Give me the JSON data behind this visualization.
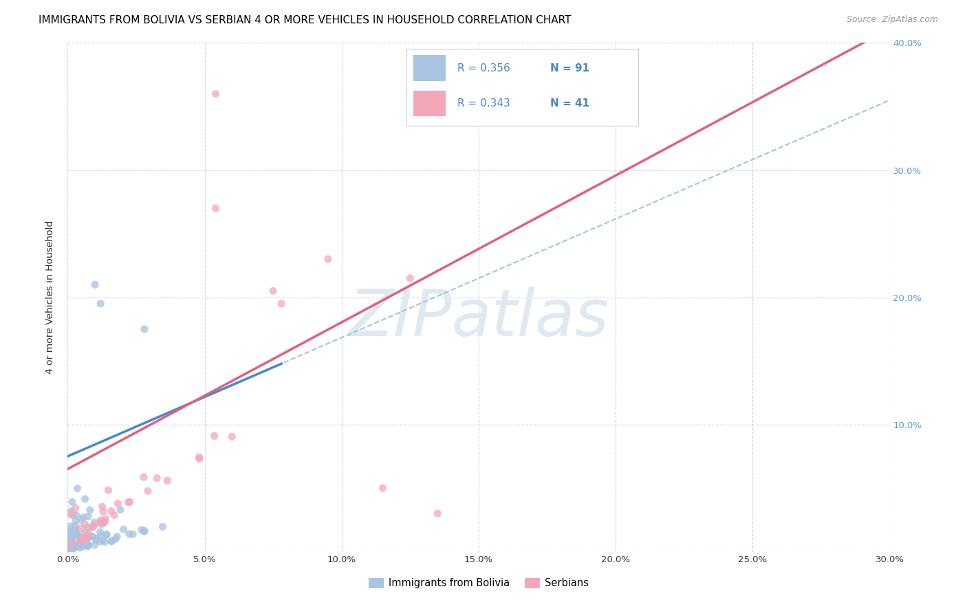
{
  "title": "IMMIGRANTS FROM BOLIVIA VS SERBIAN 4 OR MORE VEHICLES IN HOUSEHOLD CORRELATION CHART",
  "source": "Source: ZipAtlas.com",
  "ylabel": "4 or more Vehicles in Household",
  "xlim": [
    0.0,
    0.3
  ],
  "ylim": [
    0.0,
    0.4
  ],
  "legend_label1": "Immigrants from Bolivia",
  "legend_label2": "Serbians",
  "R1": "0.356",
  "N1": "91",
  "R2": "0.343",
  "N2": "41",
  "color_blue": "#a8c4e0",
  "color_pink": "#f4a7b9",
  "line_color_blue": "#4a86c8",
  "line_color_pink": "#e06080",
  "dash_color": "#90bcd8",
  "text_blue": "#4a86c8",
  "right_tick_color": "#5b9bd5",
  "watermark_color": "#e0e8f0"
}
